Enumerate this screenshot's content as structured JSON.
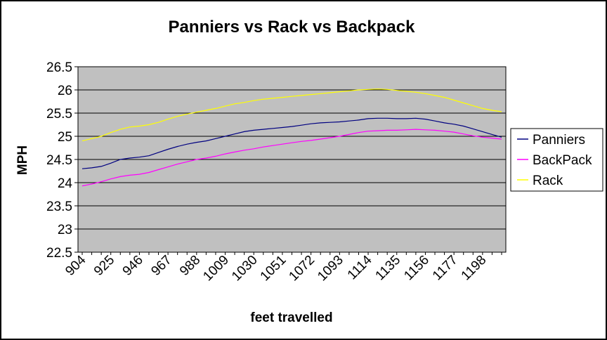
{
  "chart_data": {
    "type": "line",
    "title": "Panniers vs Rack vs Backpack",
    "xlabel": "feet travelled",
    "ylabel": "MPH",
    "ylim": [
      22.5,
      26.5
    ],
    "y_ticks": [
      "22.5",
      "23",
      "23.5",
      "24",
      "24.5",
      "25",
      "25.5",
      "26",
      "26.5"
    ],
    "x_tick_labels": [
      "904",
      "925",
      "946",
      "967",
      "988",
      "1009",
      "1030",
      "1051",
      "1072",
      "1093",
      "1114",
      "1135",
      "1156",
      "1177",
      "1198"
    ],
    "x": [
      904,
      911,
      918,
      925,
      932,
      939,
      946,
      953,
      960,
      967,
      974,
      981,
      988,
      995,
      1002,
      1009,
      1016,
      1023,
      1030,
      1037,
      1044,
      1051,
      1058,
      1065,
      1072,
      1079,
      1086,
      1093,
      1100,
      1107,
      1114,
      1121,
      1128,
      1135,
      1142,
      1149,
      1156,
      1163,
      1170,
      1177,
      1184,
      1191,
      1198,
      1205,
      1212
    ],
    "grid": true,
    "plot_background": "#c0c0c0",
    "legend_position": "right",
    "series": [
      {
        "name": "Panniers",
        "color": "#000080",
        "values": [
          24.3,
          24.32,
          24.35,
          24.42,
          24.5,
          24.53,
          24.55,
          24.58,
          24.65,
          24.72,
          24.78,
          24.83,
          24.87,
          24.9,
          24.95,
          25.0,
          25.05,
          25.1,
          25.13,
          25.15,
          25.17,
          25.19,
          25.21,
          25.24,
          25.27,
          25.29,
          25.3,
          25.31,
          25.33,
          25.35,
          25.38,
          25.39,
          25.39,
          25.38,
          25.38,
          25.39,
          25.37,
          25.33,
          25.29,
          25.26,
          25.22,
          25.16,
          25.1,
          25.04,
          24.98
        ]
      },
      {
        "name": "BackPack",
        "color": "#ff00ff",
        "values": [
          23.93,
          23.97,
          24.02,
          24.08,
          24.13,
          24.16,
          24.18,
          24.22,
          24.28,
          24.34,
          24.4,
          24.45,
          24.5,
          24.53,
          24.57,
          24.62,
          24.66,
          24.7,
          24.73,
          24.77,
          24.8,
          24.83,
          24.86,
          24.89,
          24.91,
          24.94,
          24.97,
          25.0,
          25.04,
          25.08,
          25.11,
          25.12,
          25.13,
          25.13,
          25.14,
          25.15,
          25.14,
          25.13,
          25.11,
          25.09,
          25.05,
          25.01,
          24.98,
          24.96,
          24.94
        ]
      },
      {
        "name": "Rack",
        "color": "#ffff00",
        "values": [
          24.9,
          24.95,
          25.0,
          25.08,
          25.15,
          25.2,
          25.22,
          25.25,
          25.3,
          25.37,
          25.43,
          25.48,
          25.52,
          25.56,
          25.6,
          25.65,
          25.7,
          25.73,
          25.77,
          25.8,
          25.82,
          25.84,
          25.86,
          25.88,
          25.9,
          25.92,
          25.94,
          25.96,
          25.98,
          26.0,
          26.01,
          26.02,
          26.01,
          25.99,
          25.97,
          25.95,
          25.92,
          25.88,
          25.84,
          25.78,
          25.72,
          25.66,
          25.6,
          25.56,
          25.53
        ]
      }
    ]
  }
}
